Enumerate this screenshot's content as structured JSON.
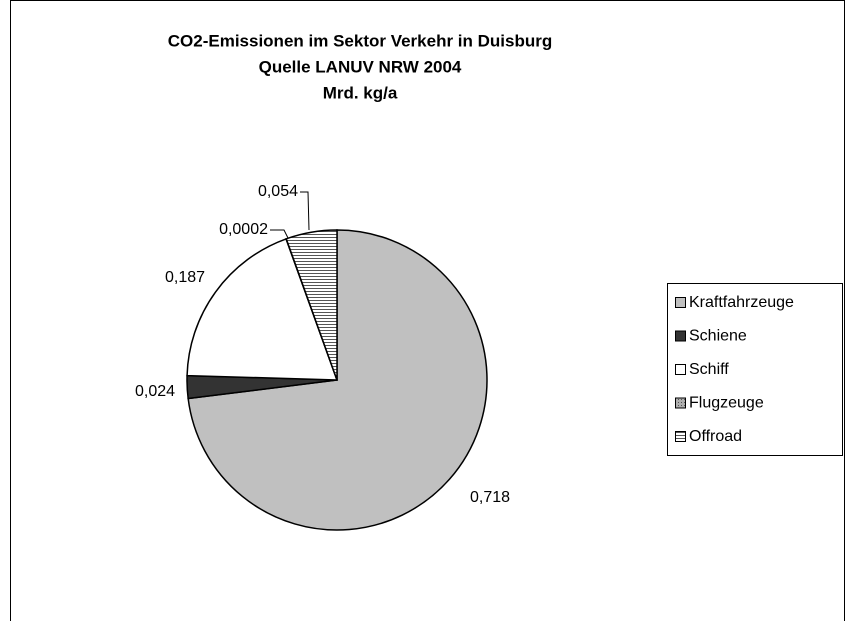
{
  "chart_data": {
    "type": "pie",
    "title": [
      "CO2-Emissionen im Sektor Verkehr in Duisburg",
      "Quelle LANUV NRW 2004",
      "Mrd. kg/a"
    ],
    "categories": [
      "Kraftfahrzeuge",
      "Schiene",
      "Schiff",
      "Flugzeuge",
      "Offroad"
    ],
    "values": [
      0.718,
      0.024,
      0.187,
      0.0002,
      0.054
    ],
    "value_labels": [
      "0,718",
      "0,024",
      "0,187",
      "0,0002",
      "0,054"
    ],
    "colors": [
      "#c0c0c0",
      "#333333",
      "#ffffff",
      "#999999",
      "#808080"
    ],
    "legend": "right"
  }
}
